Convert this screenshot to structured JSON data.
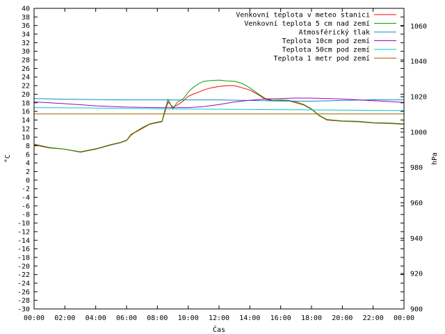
{
  "chart_data": {
    "type": "line",
    "xlabel": "Čas",
    "ylabel": "°C",
    "y2label": "hPa",
    "x_ticks": [
      "00:00",
      "02:00",
      "04:00",
      "06:00",
      "08:00",
      "10:00",
      "12:00",
      "14:00",
      "16:00",
      "18:00",
      "20:00",
      "22:00",
      "00:00"
    ],
    "xlim": [
      0,
      24
    ],
    "ylim": [
      -30,
      40
    ],
    "y_ticks": [
      40,
      38,
      36,
      34,
      32,
      30,
      28,
      26,
      24,
      22,
      20,
      18,
      16,
      14,
      12,
      10,
      8,
      6,
      4,
      2,
      0,
      -2,
      -4,
      -6,
      -8,
      -10,
      -12,
      -14,
      -16,
      -18,
      -20,
      -22,
      -24,
      -26,
      -28,
      -30
    ],
    "y2lim": [
      900,
      1070
    ],
    "y2_ticks": [
      1060,
      1040,
      1020,
      1000,
      980,
      960,
      940,
      920,
      900
    ],
    "legend_position": "top-right",
    "series": [
      {
        "name": "Venkovní teplota v meteo stanici",
        "color": "#ff0000",
        "axis": "left",
        "x": [
          0,
          1,
          2,
          3,
          4,
          5,
          5.5,
          6,
          6.3,
          6.5,
          7,
          7.5,
          8,
          8.3,
          8.5,
          8.7,
          9,
          9.3,
          9.7,
          10,
          10.3,
          10.7,
          11,
          11.5,
          12,
          12.5,
          13,
          13.5,
          14,
          14.5,
          15,
          15.5,
          16,
          16.5,
          17,
          17.5,
          18,
          18.5,
          19,
          20,
          21,
          22,
          23,
          24
        ],
        "y": [
          8.2,
          7.5,
          7.2,
          6.5,
          7.2,
          8.2,
          8.6,
          9.2,
          10.5,
          11,
          12,
          13,
          13.4,
          13.6,
          16,
          18.2,
          17,
          17.5,
          18.5,
          19.5,
          20,
          20.5,
          21,
          21.5,
          21.8,
          22,
          22,
          21.5,
          21,
          20,
          18.8,
          18.5,
          18.5,
          18.5,
          18,
          17.5,
          16.5,
          15,
          14,
          13.7,
          13.6,
          13.3,
          13.2,
          13
        ]
      },
      {
        "name": "Venkovní teplota 5 cm nad zemí",
        "color": "#00a000",
        "axis": "left",
        "x": [
          0,
          1,
          2,
          3,
          4,
          5,
          5.5,
          6,
          6.3,
          6.5,
          7,
          7.5,
          8,
          8.3,
          8.5,
          8.7,
          9,
          9.3,
          9.7,
          10,
          10.3,
          10.7,
          11,
          11.5,
          12,
          12.5,
          13,
          13.5,
          14,
          14.5,
          15,
          15.5,
          16,
          16.5,
          17,
          17.5,
          18,
          18.5,
          19,
          20,
          21,
          22,
          23,
          24
        ],
        "y": [
          8.4,
          7.6,
          7.2,
          6.6,
          7.3,
          8.3,
          8.7,
          9.3,
          10.7,
          11.1,
          12.2,
          13.1,
          13.5,
          13.7,
          16.5,
          18.8,
          16.5,
          18.2,
          19,
          20.5,
          21.5,
          22.5,
          23,
          23.2,
          23.3,
          23.1,
          23,
          22.5,
          21.5,
          20.2,
          19,
          18.6,
          18.7,
          18.6,
          18.2,
          17.6,
          16.6,
          15.1,
          14.1,
          13.8,
          13.7,
          13.4,
          13.3,
          13.1
        ]
      },
      {
        "name": "Atmosférický tlak",
        "color": "#0090c0",
        "axis": "right",
        "x": [
          0,
          2,
          4,
          6,
          8,
          10,
          12,
          14,
          16,
          18,
          20,
          22,
          24
        ],
        "y": [
          1019,
          1018.6,
          1018.4,
          1018.2,
          1018.2,
          1018.2,
          1018.2,
          1017.9,
          1017.6,
          1017.5,
          1017.9,
          1018.3,
          1018.2
        ]
      },
      {
        "name": "Teplota 10cm pod zemí",
        "color": "#a000c0",
        "axis": "left",
        "x": [
          0,
          2,
          4,
          6,
          8,
          9,
          10,
          11,
          12,
          13,
          14,
          15,
          16,
          17,
          18,
          19,
          20,
          21,
          22,
          23,
          24
        ],
        "y": [
          18.2,
          17.8,
          17.3,
          17,
          16.9,
          16.9,
          16.9,
          17.1,
          17.6,
          18.2,
          18.6,
          18.9,
          19,
          19.1,
          19.1,
          19,
          18.9,
          18.7,
          18.5,
          18.3,
          18.1
        ]
      },
      {
        "name": "Teplota 50cm pod zemí",
        "color": "#00c8c8",
        "axis": "left",
        "x": [
          0,
          4,
          8,
          12,
          16,
          20,
          24
        ],
        "y": [
          16.9,
          16.8,
          16.6,
          16.5,
          16.4,
          16.3,
          16.2
        ]
      },
      {
        "name": "Teplota 1 metr pod zemí",
        "color": "#a06000",
        "axis": "left",
        "x": [
          0,
          24
        ],
        "y": [
          15.4,
          15.4
        ]
      }
    ]
  }
}
